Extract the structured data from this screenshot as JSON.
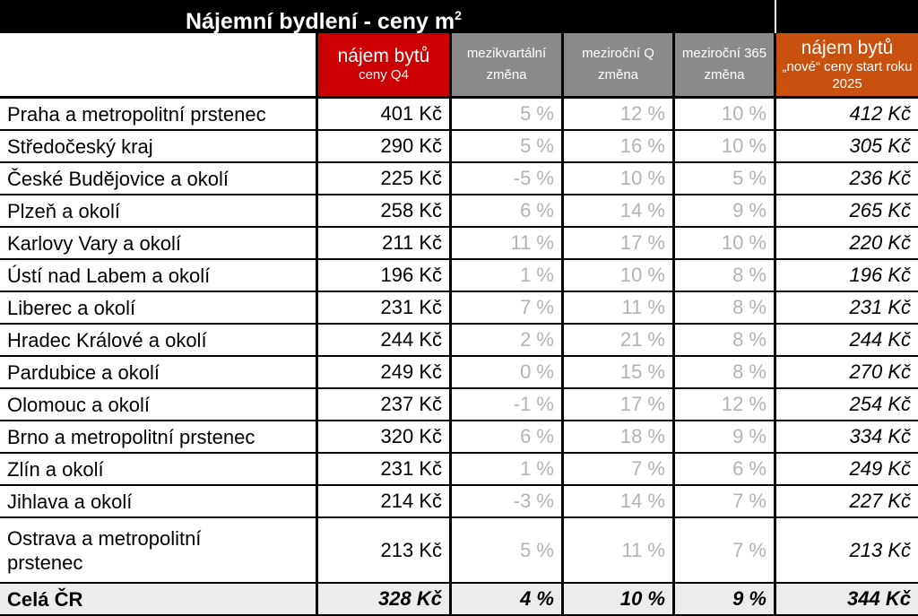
{
  "title": {
    "text": "Nájemní bydlení - ceny m",
    "sup": "2"
  },
  "header": {
    "col1_line1": "nájem bytů",
    "col1_line2": "ceny Q4",
    "col2": "mezikvartální změna",
    "col3": "meziroční Q změna",
    "col4": "meziroční 365 změna",
    "col5_line1": "nájem bytů",
    "col5_line2": "„nové“ ceny start roku 2025"
  },
  "rows": [
    {
      "region": "Praha a metropolitní prstenec",
      "price": "401 Kč",
      "qoq": "5 %",
      "yoy_q": "12 %",
      "yoy_365": "10 %",
      "new_price": "412 Kč"
    },
    {
      "region": "Středočeský kraj",
      "price": "290 Kč",
      "qoq": "5 %",
      "yoy_q": "16 %",
      "yoy_365": "10 %",
      "new_price": "305 Kč"
    },
    {
      "region": "České Budějovice a okolí",
      "price": "225 Kč",
      "qoq": "-5 %",
      "yoy_q": "10 %",
      "yoy_365": "5 %",
      "new_price": "236 Kč"
    },
    {
      "region": "Plzeň a okolí",
      "price": "258 Kč",
      "qoq": "6 %",
      "yoy_q": "14 %",
      "yoy_365": "9 %",
      "new_price": "265 Kč"
    },
    {
      "region": "Karlovy Vary a okolí",
      "price": "211 Kč",
      "qoq": "11 %",
      "yoy_q": "17 %",
      "yoy_365": "10 %",
      "new_price": "220 Kč"
    },
    {
      "region": "Ústí nad Labem a okolí",
      "price": "196 Kč",
      "qoq": "1 %",
      "yoy_q": "10 %",
      "yoy_365": "8 %",
      "new_price": "196 Kč"
    },
    {
      "region": "Liberec a okolí",
      "price": "231 Kč",
      "qoq": "7 %",
      "yoy_q": "11 %",
      "yoy_365": "8 %",
      "new_price": "231 Kč"
    },
    {
      "region": "Hradec Králové a okolí",
      "price": "244 Kč",
      "qoq": "2 %",
      "yoy_q": "21 %",
      "yoy_365": "8 %",
      "new_price": "244 Kč"
    },
    {
      "region": "Pardubice a okolí",
      "price": "249 Kč",
      "qoq": "0 %",
      "yoy_q": "15 %",
      "yoy_365": "8 %",
      "new_price": "270 Kč"
    },
    {
      "region": "Olomouc a okolí",
      "price": "237 Kč",
      "qoq": "-1 %",
      "yoy_q": "17 %",
      "yoy_365": "12 %",
      "new_price": "254 Kč"
    },
    {
      "region": "Brno a metropolitní prstenec",
      "price": "320 Kč",
      "qoq": "6 %",
      "yoy_q": "18 %",
      "yoy_365": "9 %",
      "new_price": "334 Kč"
    },
    {
      "region": "Zlín a okolí",
      "price": "231 Kč",
      "qoq": "1 %",
      "yoy_q": "7 %",
      "yoy_365": "6 %",
      "new_price": "249 Kč"
    },
    {
      "region": "Jihlava a okolí",
      "price": "214 Kč",
      "qoq": "-3 %",
      "yoy_q": "14 %",
      "yoy_365": "7 %",
      "new_price": "227 Kč"
    },
    {
      "region": "Ostrava a metropolitní prstenec",
      "price": "213 Kč",
      "qoq": "5 %",
      "yoy_q": "11 %",
      "yoy_365": "7 %",
      "new_price": "213 Kč"
    }
  ],
  "total": {
    "region": "Celá ČR",
    "price": "328 Kč",
    "qoq": "4 %",
    "yoy_q": "10 %",
    "yoy_365": "9 %",
    "new_price": "344 Kč"
  },
  "colors": {
    "red": "#cc0000",
    "gray": "#8a8a8a",
    "orange": "#c9510f",
    "muted_text": "#b3b3b3",
    "total_bg": "#ececec"
  }
}
